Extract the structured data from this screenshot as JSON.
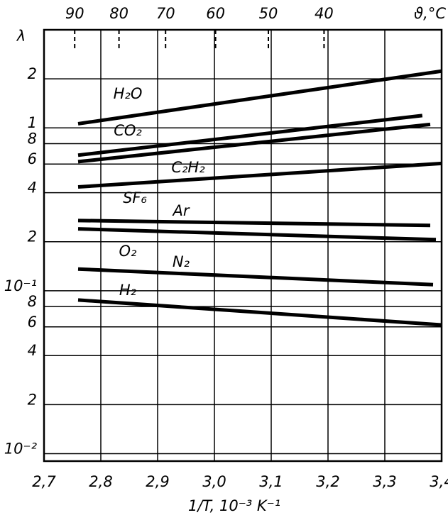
{
  "chart_data": {
    "type": "line",
    "ylabel": "λ",
    "xlabel": "1/T, 10⁻³ K⁻¹",
    "x2label": "ϑ,°C",
    "log_y": true,
    "grid": true,
    "xlim": [
      2.7,
      3.4
    ],
    "xticks": [
      {
        "value": 2.7,
        "label": "2,7"
      },
      {
        "value": 2.8,
        "label": "2,8"
      },
      {
        "value": 2.9,
        "label": "2,9"
      },
      {
        "value": 3.0,
        "label": "3,0"
      },
      {
        "value": 3.1,
        "label": "3,1"
      },
      {
        "value": 3.2,
        "label": "3,2"
      },
      {
        "value": 3.3,
        "label": "3,3"
      },
      {
        "value": 3.4,
        "label": "3,4"
      }
    ],
    "x2ticks": [
      {
        "value": 2.754,
        "label": "90"
      },
      {
        "value": 2.832,
        "label": "80"
      },
      {
        "value": 2.914,
        "label": "70"
      },
      {
        "value": 3.002,
        "label": "60"
      },
      {
        "value": 3.095,
        "label": "50"
      },
      {
        "value": 3.193,
        "label": "40"
      }
    ],
    "ylim": [
      0.009,
      4
    ],
    "yticks": [
      2,
      1,
      {
        "value": 0.8,
        "label": "8"
      },
      {
        "value": 0.6,
        "label": "6"
      },
      {
        "value": 0.4,
        "label": "4"
      },
      {
        "value": 0.2,
        "label": "2"
      },
      {
        "value": 0.1,
        "label": "10⁻¹"
      },
      {
        "value": 0.08,
        "label": "8"
      },
      {
        "value": 0.06,
        "label": "6"
      },
      {
        "value": 0.04,
        "label": "4"
      },
      {
        "value": 0.02,
        "label": "2"
      },
      {
        "value": 0.01,
        "label": "10⁻²"
      }
    ],
    "series": [
      {
        "name": "H₂O",
        "color": "#000000",
        "x": [
          2.76,
          3.4
        ],
        "values": [
          1.06,
          2.23
        ]
      },
      {
        "name": "CO₂",
        "color": "#000000",
        "x": [
          2.76,
          3.366
        ],
        "values": [
          0.68,
          1.19
        ]
      },
      {
        "name": "C₂H₂",
        "color": "#000000",
        "x": [
          2.76,
          3.38
        ],
        "values": [
          0.62,
          1.05
        ]
      },
      {
        "name": "SF₆",
        "color": "#000000",
        "x": [
          2.76,
          3.4
        ],
        "values": [
          0.434,
          0.605
        ]
      },
      {
        "name": "Ar",
        "color": "#000000",
        "x": [
          2.76,
          3.38
        ],
        "values": [
          0.27,
          0.252
        ]
      },
      {
        "name": "O₂",
        "color": "#000000",
        "x": [
          2.76,
          3.39
        ],
        "values": [
          0.24,
          0.206
        ]
      },
      {
        "name": "N₂",
        "color": "#000000",
        "x": [
          2.76,
          3.385
        ],
        "values": [
          0.136,
          0.109
        ]
      },
      {
        "name": "H₂",
        "color": "#000000",
        "x": [
          2.76,
          3.4
        ],
        "values": [
          0.0878,
          0.0617
        ]
      }
    ]
  }
}
